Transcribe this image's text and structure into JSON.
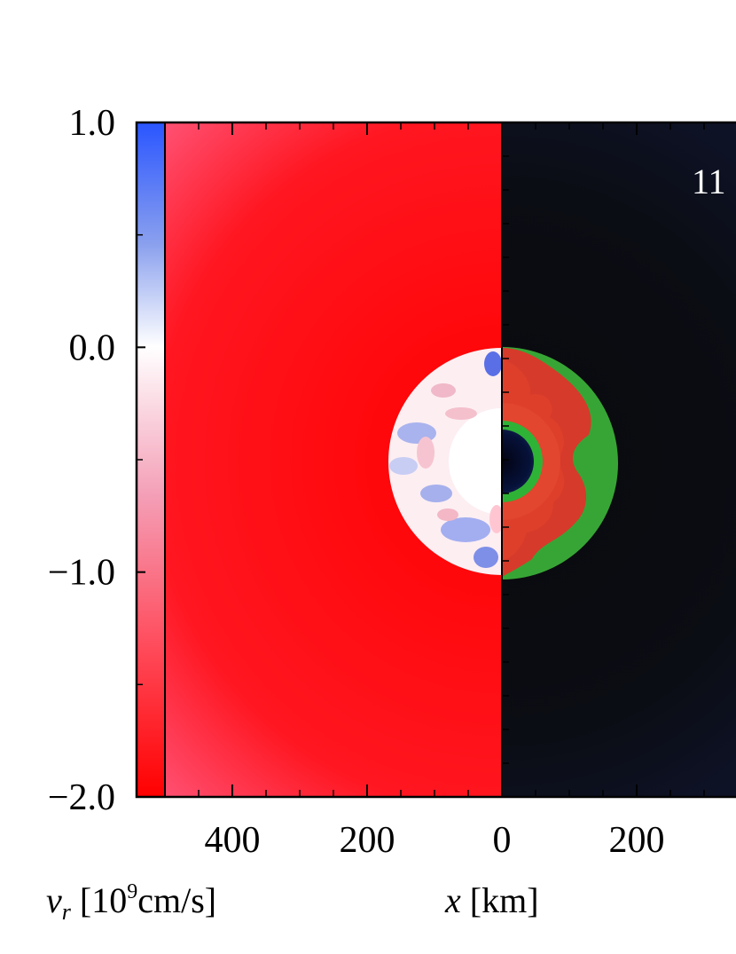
{
  "chart_data": {
    "type": "heatmap",
    "panels": [
      {
        "side": "left",
        "quantity": "radial velocity",
        "background_color": "#ff0a0a"
      },
      {
        "side": "right",
        "quantity": "composition",
        "background_color": "#0c0f19"
      }
    ],
    "colorbar": {
      "label_symbol": "v",
      "label_subscript": "r",
      "label_unit_open": " [10",
      "label_exponent": "9",
      "label_unit_close": "cm/s]",
      "min": -2.0,
      "max": 1.0,
      "ticks": [
        {
          "value": 1.0,
          "label": "1.0"
        },
        {
          "value": 0.0,
          "label": "0.0"
        },
        {
          "value": -1.0,
          "label": "−1.0"
        },
        {
          "value": -2.0,
          "label": "−2.0"
        }
      ],
      "colors": {
        "max": "#2a55ff",
        "zero": "#ffffff",
        "min": "#ff0000"
      }
    },
    "xaxis": {
      "label_symbol": "x",
      "label_unit": " [km]",
      "ticks": [
        {
          "value": -400,
          "label": "400"
        },
        {
          "value": -200,
          "label": "200"
        },
        {
          "value": 0,
          "label": "0"
        },
        {
          "value": 200,
          "label": "200"
        }
      ]
    },
    "annotation": {
      "text": "11"
    },
    "feature": {
      "description_radius_km": 170
    }
  }
}
